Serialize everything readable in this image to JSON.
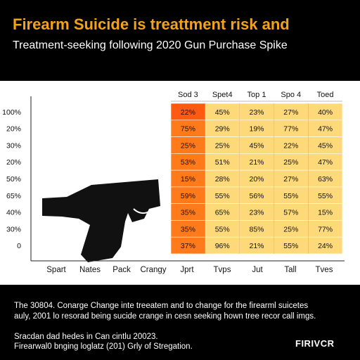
{
  "page": {
    "title": "Firearm Suicide is treattment risk and",
    "subtitle": "Treatment-seeking following 2020 Gun Purchase Spike",
    "note_line1": "The 30804. Conarge Change inte treeatem and to change for the firearml suicetes",
    "note_line2": "auly, 2001 lo resorad being sucide crange in cesn seeking hown tree recor call imgs.",
    "source_line1": "Sracdan dad hedes in Can cintlu 20023.",
    "source_line2": "Firearwal0 bnging loglatz (201) Grly of Stregation.",
    "logo": "FIRIVCR"
  },
  "chart_data": {
    "type": "table",
    "columns": [
      "Sod 3",
      "Spet4",
      "Top 1",
      "Spo 4",
      "Toed"
    ],
    "row_labels": [
      "100%",
      "20%",
      "30%",
      "20%",
      "50%",
      "65%",
      "40%",
      "30%",
      "0"
    ],
    "bottom_labels": [
      "Spart",
      "Nates",
      "Pack",
      "Crangy",
      "Jprt",
      "Tvps",
      "Jut",
      "Tall",
      "Tves"
    ],
    "cells": [
      [
        "22%",
        "45%",
        "23%",
        "27%",
        "40%"
      ],
      [
        "75%",
        "29%",
        "19%",
        "77%",
        "47%"
      ],
      [
        "25%",
        "25%",
        "45%",
        "22%",
        "45%"
      ],
      [
        "53%",
        "51%",
        "21%",
        "25%",
        "47%"
      ],
      [
        "15%",
        "28%",
        "20%",
        "27%",
        "63%"
      ],
      [
        "59%",
        "55%",
        "56%",
        "55%",
        "55%"
      ],
      [
        "35%",
        "65%",
        "23%",
        "57%",
        "15%"
      ],
      [
        "35%",
        "55%",
        "85%",
        "25%",
        "77%"
      ],
      [
        "37%",
        "96%",
        "21%",
        "55%",
        "24%"
      ]
    ],
    "colors": {
      "first_column": "#ff7a1a",
      "first_column_top": "#ff5a12",
      "other_columns": "#fdd97a",
      "title": "#f3a21c",
      "grid": "#e6a94a"
    },
    "icon": "handgun-icon"
  }
}
